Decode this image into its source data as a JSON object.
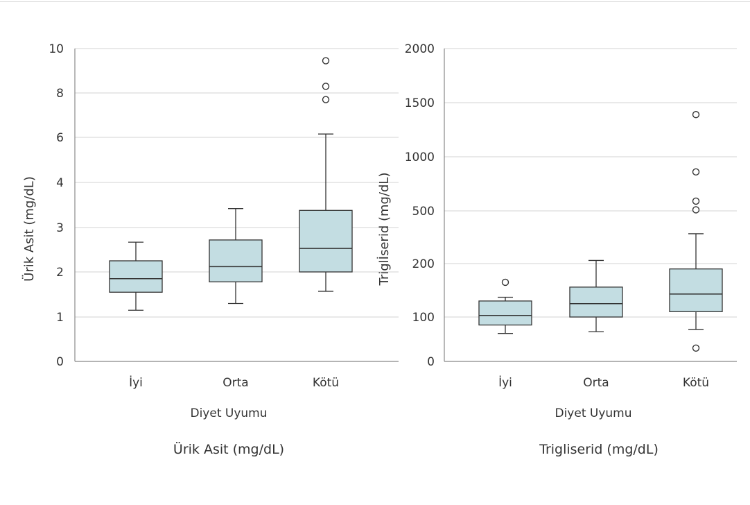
{
  "chart_data": [
    {
      "type": "boxplot",
      "caption": "Ürik Asit (mg/dL)",
      "xlabel": "Diyet Uyumu",
      "ylabel": "Ürik Asit (mg/dL)",
      "categories": [
        "İyi",
        "Orta",
        "Kötü"
      ],
      "y_tick_labels": [
        "0",
        "1",
        "2",
        "3",
        "4",
        "6",
        "8",
        "10"
      ],
      "grid": true,
      "boxes": [
        {
          "category": "İyi",
          "whisker_low": 1.15,
          "q1": 1.55,
          "median": 1.85,
          "q3": 2.25,
          "whisker_high": 2.67,
          "outliers": []
        },
        {
          "category": "Orta",
          "whisker_low": 1.3,
          "q1": 1.78,
          "median": 2.12,
          "q3": 2.72,
          "whisker_high": 3.42,
          "outliers": []
        },
        {
          "category": "Kötü",
          "whisker_low": 1.57,
          "q1": 2.0,
          "median": 2.53,
          "q3": 3.38,
          "whisker_high": 6.15,
          "outliers": [
            7.7,
            8.3,
            9.45
          ]
        }
      ]
    },
    {
      "type": "boxplot",
      "caption": "Trigliserid (mg/dL)",
      "xlabel": "Diyet Uyumu",
      "ylabel": "Triglİserid (mg/dL)",
      "categories": [
        "İyi",
        "Orta",
        "Kötü"
      ],
      "y_tick_labels": [
        "0",
        "100",
        "200",
        "500",
        "1000",
        "1500",
        "2000"
      ],
      "grid": true,
      "boxes": [
        {
          "category": "İyi",
          "whisker_low": 63,
          "q1": 82,
          "median": 103,
          "q3": 130,
          "whisker_high": 137,
          "outliers": [
            165
          ]
        },
        {
          "category": "Orta",
          "whisker_low": 67,
          "q1": 100,
          "median": 125,
          "q3": 156,
          "whisker_high": 218,
          "outliers": []
        },
        {
          "category": "Kötü",
          "whisker_low": 72,
          "q1": 110,
          "median": 143,
          "q3": 190,
          "whisker_high": 370,
          "outliers": [
            30,
            510,
            590,
            860,
            1390
          ]
        }
      ]
    }
  ],
  "colors": {
    "box_fill": "#c3dde2",
    "box_stroke": "#333333",
    "grid": "#dcdcdc",
    "axis": "#888888"
  }
}
